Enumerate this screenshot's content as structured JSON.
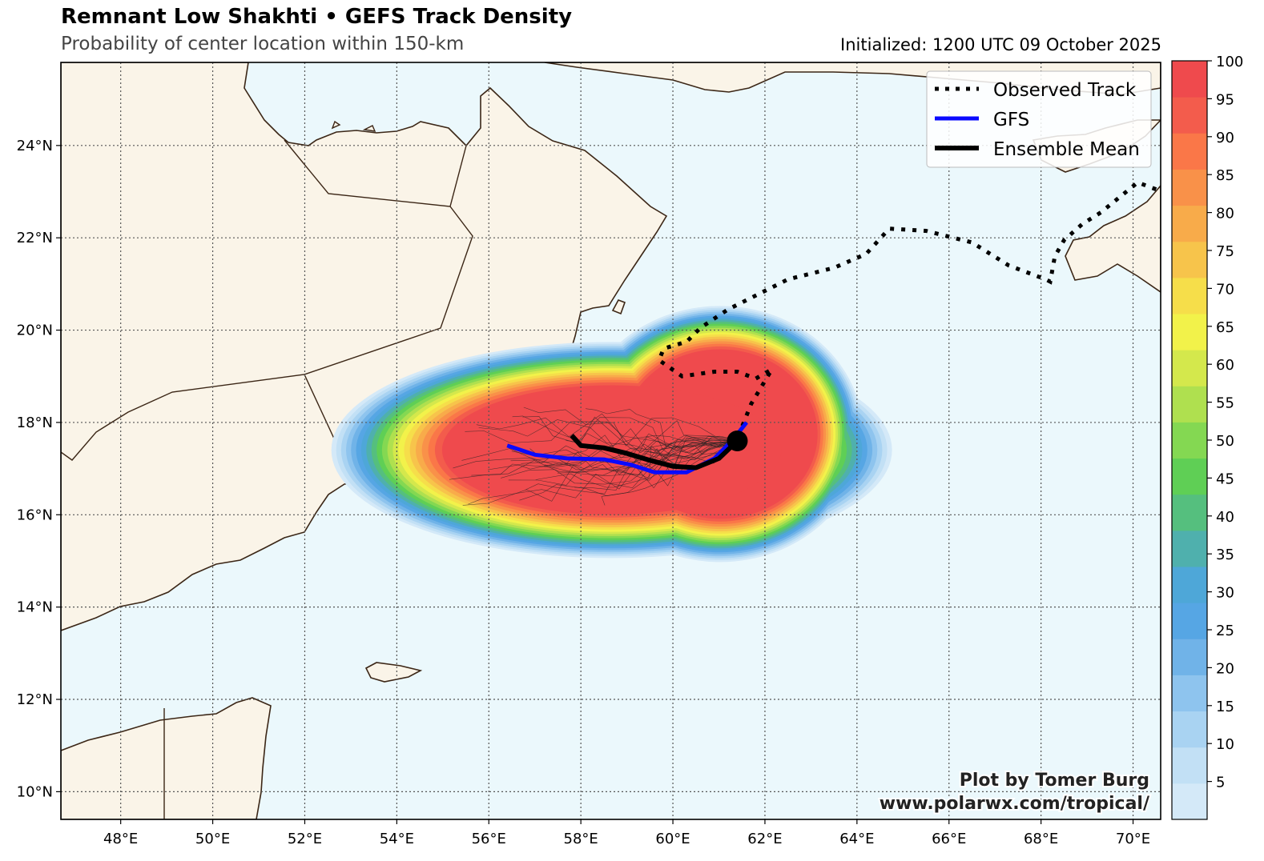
{
  "header": {
    "title": "Remnant Low Shakhti • GEFS Track Density",
    "subtitle": "Probability of center location within 150-km",
    "initialized": "Initialized: 1200 UTC 09 October 2025"
  },
  "map": {
    "lon_range": [
      46.7,
      70.6
    ],
    "lat_range": [
      9.4,
      25.8
    ],
    "lon_ticks": [
      48,
      50,
      52,
      54,
      56,
      58,
      60,
      62,
      64,
      66,
      68,
      70
    ],
    "lat_ticks": [
      10,
      12,
      14,
      16,
      18,
      20,
      22,
      24
    ],
    "lon_labels": [
      "48°E",
      "50°E",
      "52°E",
      "54°E",
      "56°E",
      "58°E",
      "60°E",
      "62°E",
      "64°E",
      "66°E",
      "68°E",
      "70°E"
    ],
    "lat_labels": [
      "10°N",
      "12°N",
      "14°N",
      "16°N",
      "18°N",
      "20°N",
      "22°N",
      "24°N"
    ],
    "grid": true,
    "colors": {
      "ocean": "#ebf8fc",
      "land": "#faf4e8",
      "coast": "#3b2616"
    }
  },
  "legend": {
    "placement": "top-right",
    "items": [
      {
        "label": "Observed Track",
        "style": "dotted",
        "color": "#000000"
      },
      {
        "label": "GFS",
        "style": "solid",
        "color": "#0000ff"
      },
      {
        "label": "Ensemble Mean",
        "style": "solid",
        "color": "#000000"
      }
    ]
  },
  "colorbar": {
    "ticks": [
      5,
      10,
      15,
      20,
      25,
      30,
      35,
      40,
      45,
      50,
      55,
      60,
      65,
      70,
      75,
      80,
      85,
      90,
      95,
      100
    ],
    "range": [
      0,
      100
    ],
    "colors": [
      "#d4e9f8",
      "#c2e0f5",
      "#a9d3f2",
      "#8ec4ee",
      "#70b3e8",
      "#56a6e4",
      "#4ea7d8",
      "#4fb0ad",
      "#55bf7e",
      "#5fcf55",
      "#84d852",
      "#afe04f",
      "#d4e84c",
      "#f2f24a",
      "#f6de4a",
      "#f7c44b",
      "#f8ab4a",
      "#f99149",
      "#fa7748",
      "#f35c4c",
      "#ef4a4d"
    ]
  },
  "chart_data": {
    "type": "map",
    "observed_track": {
      "name": "Observed Track",
      "lon": [
        70.5,
        70.1,
        69.3,
        68.9,
        68.5,
        68.3,
        68.2,
        68.1,
        67.3,
        66.5,
        65.5,
        64.7,
        64.2,
        63.5,
        62.5,
        61.8,
        61.2,
        60.6,
        60.3,
        59.8,
        59.7,
        60.2,
        60.9,
        61.4,
        61.8,
        62.15,
        61.7,
        61.4
      ],
      "lat": [
        23.05,
        23.2,
        22.55,
        22.3,
        21.95,
        21.6,
        21.05,
        21.1,
        21.4,
        21.9,
        22.15,
        22.2,
        21.65,
        21.35,
        21.1,
        20.75,
        20.45,
        20.05,
        19.75,
        19.6,
        19.35,
        19.0,
        19.1,
        19.1,
        18.95,
        19.15,
        18.4,
        17.65
      ]
    },
    "gfs": {
      "name": "GFS",
      "lon": [
        56.4,
        57.0,
        57.7,
        58.5,
        59.1,
        59.6,
        60.3,
        60.9,
        61.3,
        61.6
      ],
      "lat": [
        17.5,
        17.3,
        17.22,
        17.2,
        17.08,
        16.92,
        16.92,
        17.22,
        17.62,
        18.0
      ]
    },
    "ensemble_mean": {
      "name": "Ensemble Mean",
      "lon": [
        57.8,
        58.0,
        58.5,
        59.0,
        59.5,
        60.0,
        60.5,
        61.0,
        61.4
      ],
      "lat": [
        17.72,
        17.5,
        17.45,
        17.33,
        17.18,
        17.05,
        17.02,
        17.22,
        17.6
      ]
    },
    "current_position": {
      "lon": 61.4,
      "lat": 17.6
    },
    "density_core": {
      "lon": 61.2,
      "lat": 17.75,
      "max_probability": 100
    },
    "density_range": [
      0,
      100
    ]
  },
  "credit": {
    "line1": "Plot by Tomer Burg",
    "line2": "www.polarwx.com/tropical/"
  }
}
